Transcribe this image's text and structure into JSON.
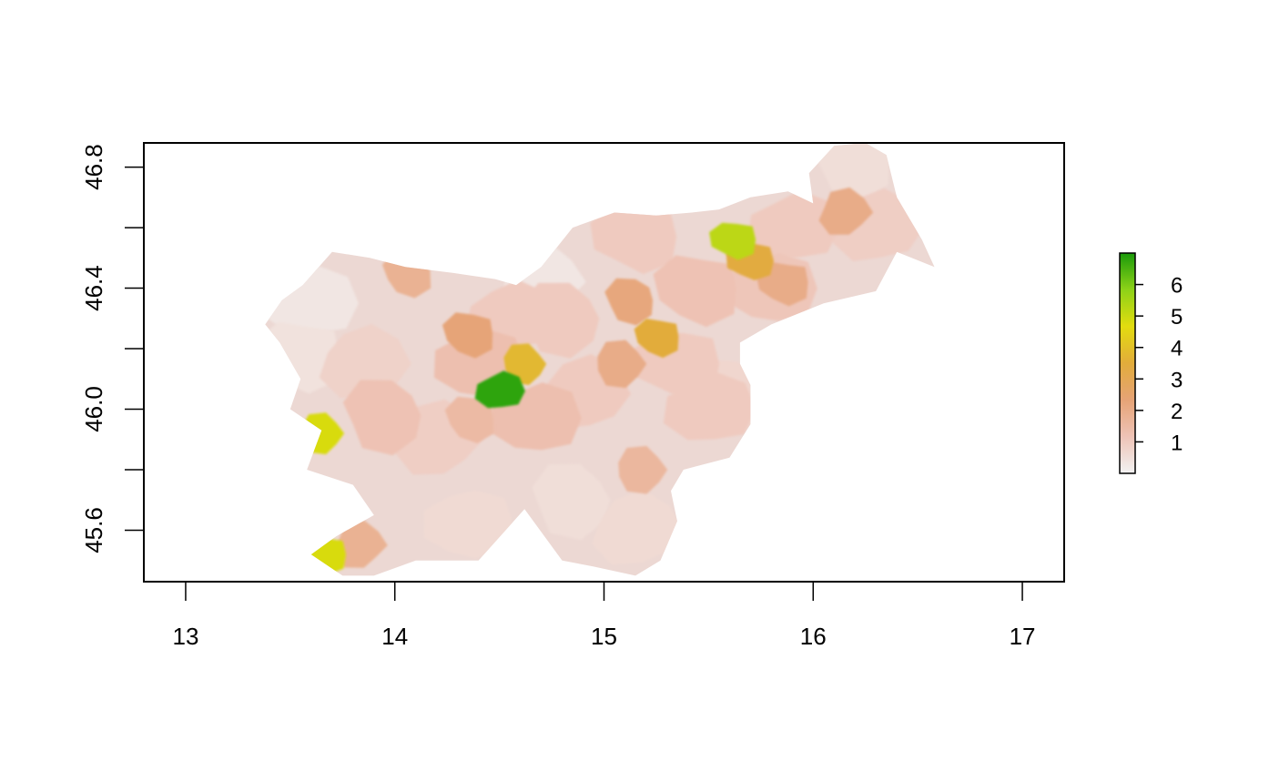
{
  "chart_data": {
    "type": "heatmap",
    "title": "",
    "xlabel": "",
    "ylabel": "",
    "xlim": [
      12.8,
      17.2
    ],
    "ylim": [
      45.43,
      46.88
    ],
    "x_ticks": [
      {
        "value": 13,
        "label": "13"
      },
      {
        "value": 14,
        "label": "14"
      },
      {
        "value": 15,
        "label": "15"
      },
      {
        "value": 16,
        "label": "16"
      },
      {
        "value": 17,
        "label": "17"
      }
    ],
    "y_ticks": [
      {
        "value": 45.6,
        "label": "45.6"
      },
      {
        "value": 45.8,
        "label": ""
      },
      {
        "value": 46.0,
        "label": "46.0"
      },
      {
        "value": 46.2,
        "label": ""
      },
      {
        "value": 46.4,
        "label": "46.4"
      },
      {
        "value": 46.6,
        "label": ""
      },
      {
        "value": 46.8,
        "label": "46.8"
      }
    ],
    "legend": {
      "position": "right",
      "min": 0,
      "max": 7,
      "ticks": [
        {
          "value": 1,
          "label": "1"
        },
        {
          "value": 2,
          "label": "2"
        },
        {
          "value": 3,
          "label": "3"
        },
        {
          "value": 4,
          "label": "4"
        },
        {
          "value": 5,
          "label": "5"
        },
        {
          "value": 6,
          "label": "6"
        }
      ],
      "color_stops": [
        "#f2f2f2",
        "#eec3b6",
        "#e6a376",
        "#e2ac3b",
        "#e2dc0f",
        "#8ed218",
        "#1a9a0a"
      ]
    },
    "region_boundary": [
      [
        13.38,
        46.28
      ],
      [
        13.46,
        46.36
      ],
      [
        13.56,
        46.41
      ],
      [
        13.7,
        46.52
      ],
      [
        13.88,
        46.5
      ],
      [
        14.05,
        46.47
      ],
      [
        14.28,
        46.45
      ],
      [
        14.48,
        46.43
      ],
      [
        14.58,
        46.41
      ],
      [
        14.7,
        46.47
      ],
      [
        14.85,
        46.6
      ],
      [
        15.05,
        46.65
      ],
      [
        15.25,
        46.64
      ],
      [
        15.42,
        46.65
      ],
      [
        15.55,
        46.66
      ],
      [
        15.7,
        46.7
      ],
      [
        15.88,
        46.72
      ],
      [
        16.0,
        46.68
      ],
      [
        15.98,
        46.78
      ],
      [
        16.1,
        46.87
      ],
      [
        16.25,
        46.88
      ],
      [
        16.35,
        46.84
      ],
      [
        16.4,
        46.7
      ],
      [
        16.52,
        46.56
      ],
      [
        16.58,
        46.47
      ],
      [
        16.4,
        46.52
      ],
      [
        16.3,
        46.39
      ],
      [
        16.05,
        46.35
      ],
      [
        15.8,
        46.28
      ],
      [
        15.65,
        46.22
      ],
      [
        15.65,
        46.15
      ],
      [
        15.7,
        46.08
      ],
      [
        15.7,
        45.95
      ],
      [
        15.6,
        45.84
      ],
      [
        15.38,
        45.8
      ],
      [
        15.32,
        45.73
      ],
      [
        15.35,
        45.63
      ],
      [
        15.27,
        45.5
      ],
      [
        15.15,
        45.45
      ],
      [
        14.95,
        45.48
      ],
      [
        14.8,
        45.5
      ],
      [
        14.62,
        45.67
      ],
      [
        14.4,
        45.5
      ],
      [
        14.1,
        45.5
      ],
      [
        13.9,
        45.45
      ],
      [
        13.75,
        45.45
      ],
      [
        13.6,
        45.52
      ],
      [
        13.72,
        45.58
      ],
      [
        13.9,
        45.65
      ],
      [
        13.8,
        45.75
      ],
      [
        13.58,
        45.8
      ],
      [
        13.65,
        45.93
      ],
      [
        13.5,
        46.0
      ],
      [
        13.55,
        46.1
      ],
      [
        13.45,
        46.22
      ]
    ],
    "regions": [
      {
        "lon": 14.5,
        "lat": 46.06,
        "value": 6.8
      },
      {
        "lon": 15.62,
        "lat": 46.56,
        "value": 5.2
      },
      {
        "lon": 13.66,
        "lat": 45.52,
        "value": 4.8
      },
      {
        "lon": 13.65,
        "lat": 45.92,
        "value": 4.8
      },
      {
        "lon": 14.62,
        "lat": 46.15,
        "value": 3.8
      },
      {
        "lon": 15.26,
        "lat": 46.24,
        "value": 3.5
      },
      {
        "lon": 15.7,
        "lat": 46.49,
        "value": 3.4
      },
      {
        "lon": 14.36,
        "lat": 46.25,
        "value": 2.3
      },
      {
        "lon": 15.13,
        "lat": 46.36,
        "value": 2.2
      },
      {
        "lon": 16.15,
        "lat": 46.65,
        "value": 2.0
      },
      {
        "lon": 15.86,
        "lat": 46.42,
        "value": 2.0
      },
      {
        "lon": 15.08,
        "lat": 46.15,
        "value": 2.0
      },
      {
        "lon": 13.83,
        "lat": 45.55,
        "value": 1.8
      },
      {
        "lon": 15.18,
        "lat": 45.8,
        "value": 1.6
      },
      {
        "lon": 14.07,
        "lat": 46.45,
        "value": 1.8
      },
      {
        "lon": 14.37,
        "lat": 45.97,
        "value": 1.5
      },
      {
        "lon": 14.67,
        "lat": 45.97,
        "value": 1.3
      },
      {
        "lon": 14.4,
        "lat": 46.15,
        "value": 1.3
      },
      {
        "lon": 13.95,
        "lat": 45.98,
        "value": 1.2
      },
      {
        "lon": 15.45,
        "lat": 46.4,
        "value": 1.2
      },
      {
        "lon": 15.5,
        "lat": 46.0,
        "value": 1.0
      },
      {
        "lon": 14.9,
        "lat": 46.05,
        "value": 1.0
      },
      {
        "lon": 14.8,
        "lat": 46.3,
        "value": 1.0
      },
      {
        "lon": 15.8,
        "lat": 46.4,
        "value": 1.1
      },
      {
        "lon": 16.3,
        "lat": 46.6,
        "value": 0.9
      },
      {
        "lon": 15.9,
        "lat": 46.6,
        "value": 1.0
      },
      {
        "lon": 15.15,
        "lat": 46.57,
        "value": 1.0
      },
      {
        "lon": 14.2,
        "lat": 45.9,
        "value": 0.9
      },
      {
        "lon": 13.85,
        "lat": 46.15,
        "value": 0.8
      },
      {
        "lon": 15.35,
        "lat": 46.15,
        "value": 1.0
      },
      {
        "lon": 14.55,
        "lat": 46.3,
        "value": 1.0
      },
      {
        "lon": 13.6,
        "lat": 46.35,
        "value": 0.3
      },
      {
        "lon": 13.55,
        "lat": 46.18,
        "value": 0.4
      },
      {
        "lon": 16.2,
        "lat": 46.82,
        "value": 0.5
      },
      {
        "lon": 14.7,
        "lat": 46.42,
        "value": 0.3
      },
      {
        "lon": 15.15,
        "lat": 45.6,
        "value": 0.6
      },
      {
        "lon": 14.35,
        "lat": 45.62,
        "value": 0.6
      },
      {
        "lon": 14.85,
        "lat": 45.7,
        "value": 0.5
      },
      {
        "lon": 15.6,
        "lat": 46.05,
        "value": 0.7
      }
    ]
  }
}
